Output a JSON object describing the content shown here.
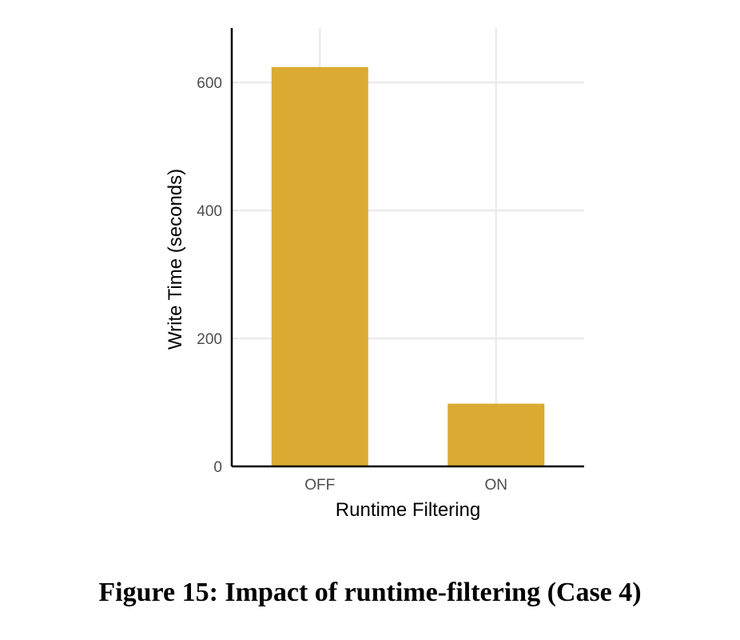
{
  "caption": "Figure 15: Impact of runtime-filtering (Case 4)",
  "chart_data": {
    "type": "bar",
    "categories": [
      "OFF",
      "ON"
    ],
    "values": [
      624,
      98
    ],
    "xlabel": "Runtime Filtering",
    "ylabel": "Write Time (seconds)",
    "yticks": [
      0,
      200,
      400,
      600
    ],
    "ylim": [
      0,
      685
    ],
    "grid": true,
    "bar_color": "#DAAA32",
    "grid_color": "#ebebeb",
    "axis_color": "#000000",
    "tick_label_color": "#4d4d4d"
  }
}
